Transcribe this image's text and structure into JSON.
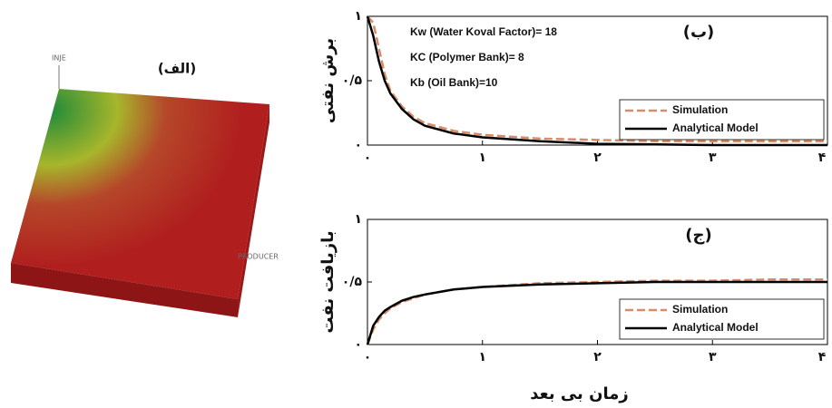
{
  "image": {
    "label": "(الف)",
    "injector": "INJE",
    "producer": "PRODUCER"
  },
  "chart_data": [
    {
      "type": "line",
      "title": "(ب)",
      "ylabel": "برش نفتی",
      "annotations": [
        "Kw (Water Koval Factor)= 18",
        "KC (Polymer Bank)= 8",
        "Kb (Oil Bank)=10"
      ],
      "x": [
        0,
        0.05,
        0.1,
        0.15,
        0.2,
        0.3,
        0.4,
        0.5,
        0.75,
        1,
        1.5,
        2,
        2.5,
        3,
        3.5,
        4
      ],
      "series": [
        {
          "name": "Simulation",
          "color": "#d98a66",
          "dash": true,
          "values": [
            1,
            0.95,
            0.75,
            0.55,
            0.42,
            0.3,
            0.22,
            0.17,
            0.11,
            0.08,
            0.05,
            0.04,
            0.03,
            0.03,
            0.03,
            0.03
          ]
        },
        {
          "name": "Analytical Model",
          "color": "#000000",
          "dash": false,
          "values": [
            1,
            0.85,
            0.65,
            0.5,
            0.4,
            0.28,
            0.2,
            0.15,
            0.09,
            0.06,
            0.03,
            0.01,
            0.005,
            0,
            0,
            0
          ]
        }
      ],
      "xlim": [
        0,
        4
      ],
      "ylim": [
        0,
        1
      ],
      "xticks": [
        {
          "value": 0,
          "label": "۰"
        },
        {
          "value": 1,
          "label": "۱"
        },
        {
          "value": 2,
          "label": "۲"
        },
        {
          "value": 3,
          "label": "۳"
        },
        {
          "value": 4,
          "label": "۴"
        }
      ],
      "yticks": [
        {
          "value": 0,
          "label": "۰"
        },
        {
          "value": 0.5,
          "label": "۰/۵"
        },
        {
          "value": 1,
          "label": "۱"
        }
      ],
      "legend": "lower right"
    },
    {
      "type": "line",
      "title": "(ج)",
      "ylabel": "بازیافت نفت",
      "xlabel": "زمان بی بعد",
      "x": [
        0,
        0.05,
        0.1,
        0.15,
        0.2,
        0.3,
        0.4,
        0.5,
        0.75,
        1,
        1.5,
        2,
        2.5,
        3,
        3.5,
        4
      ],
      "series": [
        {
          "name": "Simulation",
          "color": "#d98a66",
          "dash": true,
          "values": [
            0,
            0.12,
            0.2,
            0.25,
            0.29,
            0.34,
            0.37,
            0.4,
            0.44,
            0.46,
            0.49,
            0.5,
            0.51,
            0.51,
            0.52,
            0.52
          ]
        },
        {
          "name": "Analytical Model",
          "color": "#000000",
          "dash": false,
          "values": [
            0,
            0.15,
            0.22,
            0.27,
            0.3,
            0.35,
            0.38,
            0.4,
            0.44,
            0.46,
            0.48,
            0.49,
            0.5,
            0.5,
            0.5,
            0.5
          ]
        }
      ],
      "xlim": [
        0,
        4
      ],
      "ylim": [
        0,
        1
      ],
      "xticks": [
        {
          "value": 0,
          "label": "۰"
        },
        {
          "value": 1,
          "label": "۱"
        },
        {
          "value": 2,
          "label": "۲"
        },
        {
          "value": 3,
          "label": "۳"
        },
        {
          "value": 4,
          "label": "۴"
        }
      ],
      "yticks": [
        {
          "value": 0,
          "label": "۰"
        },
        {
          "value": 0.5,
          "label": "۰/۵"
        },
        {
          "value": 1,
          "label": "۱"
        }
      ],
      "legend": "lower right"
    }
  ]
}
